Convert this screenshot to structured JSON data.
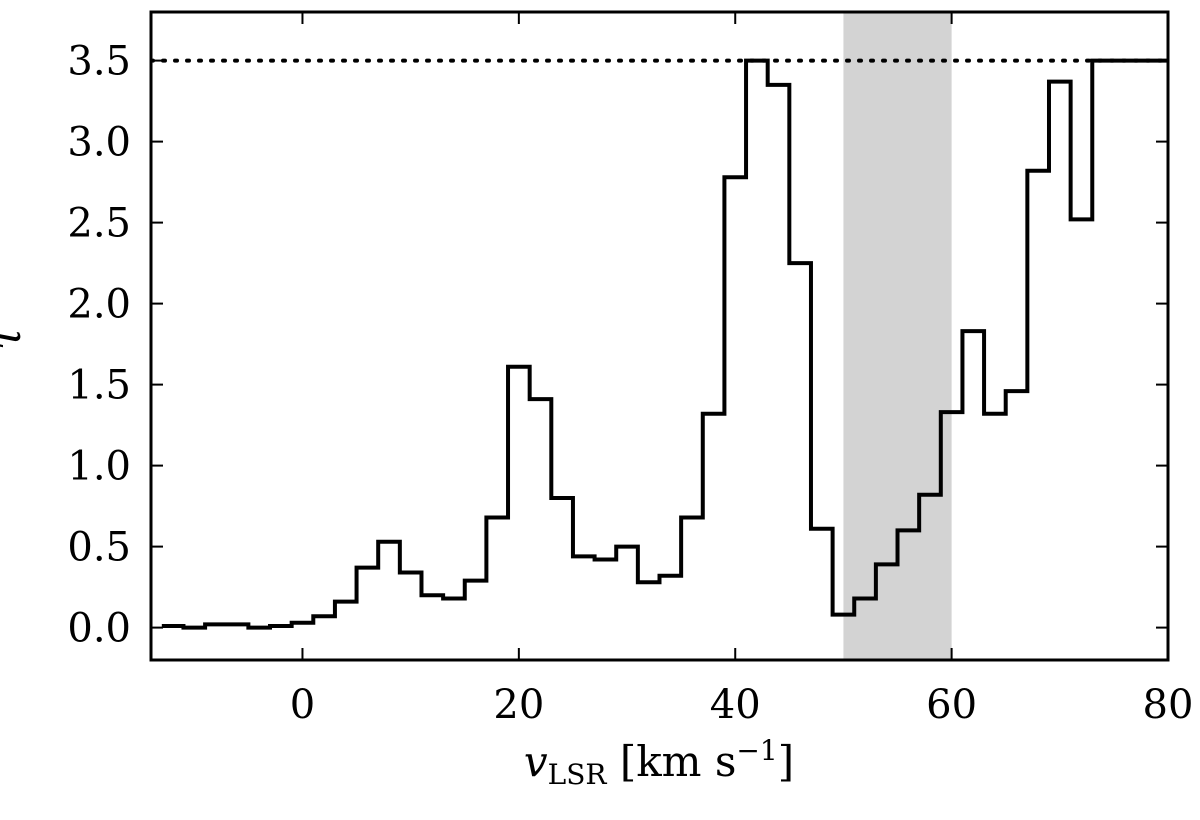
{
  "chart_data": {
    "type": "line",
    "style": "step",
    "xlabel": "v_LSR [km s^-1]",
    "ylabel": "τ",
    "xlim": [
      -14,
      80
    ],
    "ylim": [
      -0.2,
      3.8
    ],
    "xticks": [
      0,
      20,
      40,
      60,
      80
    ],
    "xtick_labels": [
      "0",
      "20",
      "40",
      "60",
      "80"
    ],
    "yticks": [
      0.0,
      0.5,
      1.0,
      1.5,
      2.0,
      2.5,
      3.0,
      3.5
    ],
    "ytick_labels": [
      "0.0",
      "0.5",
      "1.0",
      "1.5",
      "2.0",
      "2.5",
      "3.0",
      "3.5"
    ],
    "grid": false,
    "shaded_region": {
      "x_start": 50,
      "x_end": 60,
      "color": "#d3d3d3"
    },
    "reference_line": {
      "y": 3.5,
      "style": "dotted"
    },
    "series": [
      {
        "color": "#000000",
        "bin_width": 2,
        "x": [
          -12,
          -10,
          -8,
          -6,
          -4,
          -2,
          0,
          2,
          4,
          6,
          8,
          10,
          12,
          14,
          16,
          18,
          20,
          22,
          24,
          26,
          28,
          30,
          32,
          34,
          36,
          38,
          40,
          42,
          44,
          46,
          48,
          50,
          52,
          54,
          56,
          58,
          60,
          62,
          64,
          66,
          68,
          70,
          72,
          74,
          76,
          78,
          80
        ],
        "y": [
          0.01,
          0.0,
          0.02,
          0.02,
          0.0,
          0.01,
          0.03,
          0.07,
          0.16,
          0.37,
          0.53,
          0.34,
          0.2,
          0.18,
          0.29,
          0.68,
          1.61,
          1.41,
          0.8,
          0.44,
          0.42,
          0.5,
          0.28,
          0.32,
          0.68,
          1.32,
          2.78,
          3.5,
          3.35,
          2.25,
          0.61,
          0.08,
          0.18,
          0.39,
          0.6,
          0.82,
          1.33,
          1.83,
          1.32,
          1.46,
          2.82,
          3.37,
          2.52,
          3.5,
          3.5,
          3.5,
          3.5
        ]
      }
    ]
  }
}
